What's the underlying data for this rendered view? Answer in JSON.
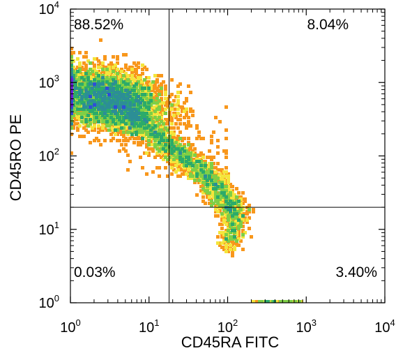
{
  "chart_data": {
    "type": "scatter",
    "subtype": "flow-cytometry-density-dot-plot",
    "title": "",
    "xlabel": "CD45RA FITC",
    "ylabel": "CD45RO PE",
    "x_scale": "log",
    "y_scale": "log",
    "xlim": [
      1,
      10000
    ],
    "ylim": [
      1,
      10000
    ],
    "grid": false,
    "x_ticks": [
      {
        "base": "10",
        "exp": "0",
        "value": 1
      },
      {
        "base": "10",
        "exp": "1",
        "value": 10
      },
      {
        "base": "10",
        "exp": "2",
        "value": 100
      },
      {
        "base": "10",
        "exp": "3",
        "value": 1000
      },
      {
        "base": "10",
        "exp": "4",
        "value": 10000
      }
    ],
    "y_ticks": [
      {
        "base": "10",
        "exp": "0",
        "value": 1
      },
      {
        "base": "10",
        "exp": "1",
        "value": 10
      },
      {
        "base": "10",
        "exp": "2",
        "value": 100
      },
      {
        "base": "10",
        "exp": "3",
        "value": 1000
      },
      {
        "base": "10",
        "exp": "4",
        "value": 10000
      }
    ],
    "quadrant_gates": {
      "x": 18,
      "y": 20
    },
    "quadrants": [
      {
        "position": "upper-left",
        "label": "88.52%",
        "percent": 88.52
      },
      {
        "position": "upper-right",
        "label": "8.04%",
        "percent": 8.04
      },
      {
        "position": "lower-left",
        "label": "0.03%",
        "percent": 0.03
      },
      {
        "position": "lower-right",
        "label": "3.40%",
        "percent": 3.4
      }
    ],
    "density_colormap": [
      "#ee2a12",
      "#f8971c",
      "#f4e53c",
      "#7fcf46",
      "#2cab6a",
      "#2c8e96",
      "#2f4fd6",
      "#6a1fd8"
    ],
    "population": {
      "main_center": [
        3,
        600
      ],
      "main_spread_log": [
        0.35,
        0.2
      ],
      "trail_start": [
        5,
        400
      ],
      "trail_end": [
        130,
        15
      ],
      "trail_mid": [
        60,
        50
      ],
      "tail_end": [
        100,
        6
      ],
      "trail_width_log": 0.09,
      "bottom_edge_x_range": [
        200,
        900
      ]
    }
  }
}
